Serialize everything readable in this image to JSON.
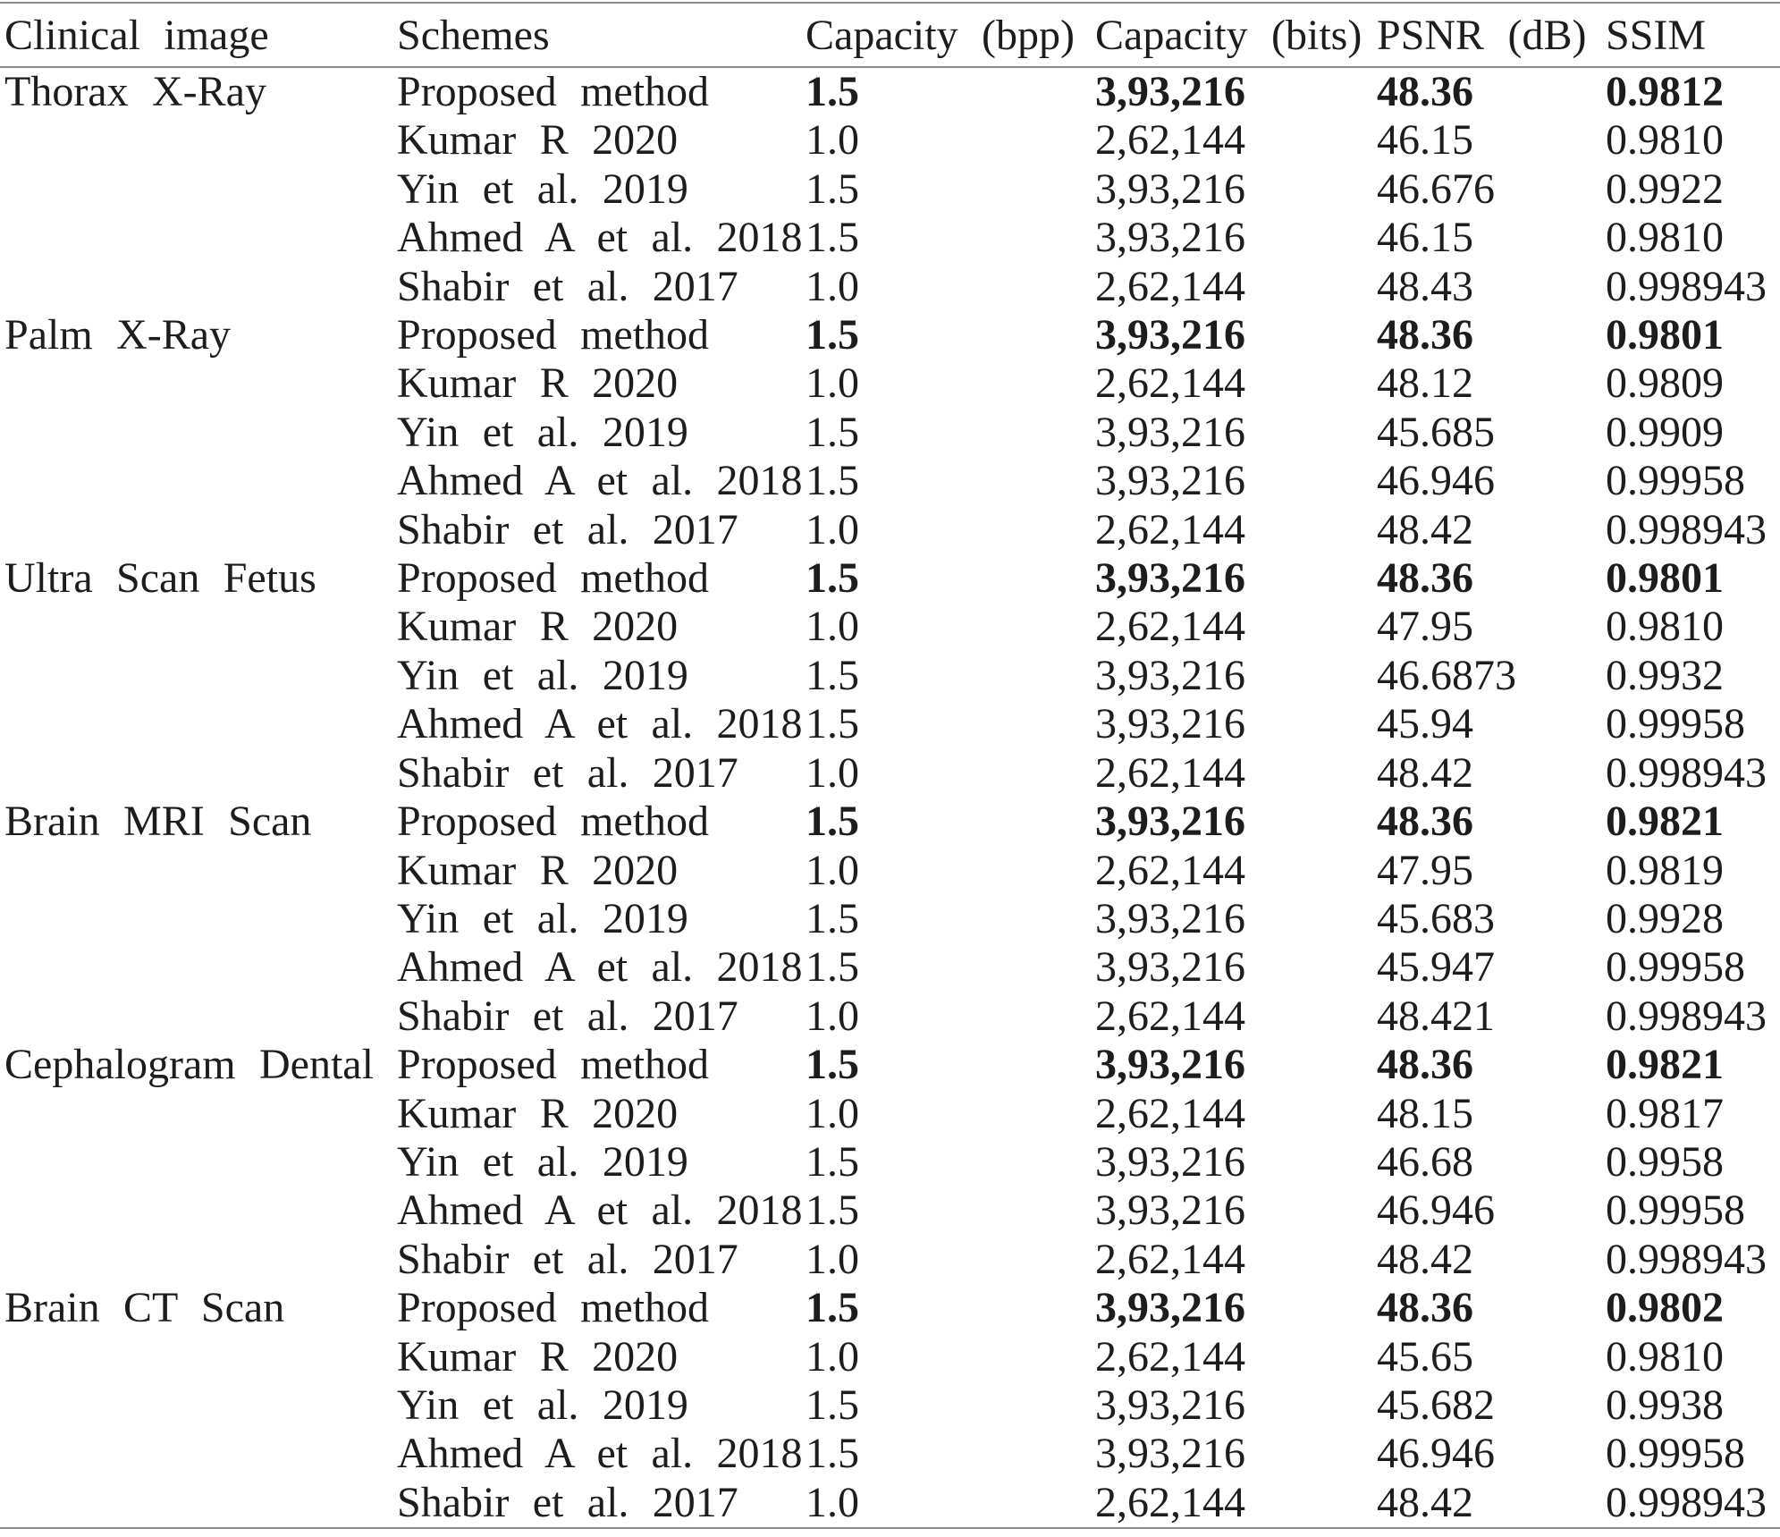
{
  "table": {
    "headers": [
      "Clinical image",
      "Schemes",
      "Capacity (bpp)",
      "Capacity (bits)",
      "PSNR (dB)",
      "SSIM"
    ],
    "groups": [
      {
        "image": "Thorax X-Ray",
        "rows": [
          {
            "scheme": "Proposed method",
            "bpp": "1.5",
            "bits": "3,93,216",
            "psnr": "48.36",
            "ssim": "0.9812",
            "highlight": true
          },
          {
            "scheme": "Kumar R 2020",
            "bpp": "1.0",
            "bits": "2,62,144",
            "psnr": "46.15",
            "ssim": "0.9810",
            "highlight": false
          },
          {
            "scheme": "Yin et al. 2019",
            "bpp": "1.5",
            "bits": "3,93,216",
            "psnr": "46.676",
            "ssim": "0.9922",
            "highlight": false
          },
          {
            "scheme": "Ahmed A et al. 2018",
            "bpp": "1.5",
            "bits": "3,93,216",
            "psnr": "46.15",
            "ssim": "0.9810",
            "highlight": false
          },
          {
            "scheme": "Shabir et al. 2017",
            "bpp": "1.0",
            "bits": "2,62,144",
            "psnr": "48.43",
            "ssim": "0.998943",
            "highlight": false
          }
        ]
      },
      {
        "image": "Palm X-Ray",
        "rows": [
          {
            "scheme": "Proposed method",
            "bpp": "1.5",
            "bits": "3,93,216",
            "psnr": "48.36",
            "ssim": "0.9801",
            "highlight": true
          },
          {
            "scheme": "Kumar R 2020",
            "bpp": "1.0",
            "bits": "2,62,144",
            "psnr": "48.12",
            "ssim": "0.9809",
            "highlight": false
          },
          {
            "scheme": "Yin et al. 2019",
            "bpp": "1.5",
            "bits": "3,93,216",
            "psnr": "45.685",
            "ssim": "0.9909",
            "highlight": false
          },
          {
            "scheme": "Ahmed A et al. 2018",
            "bpp": "1.5",
            "bits": "3,93,216",
            "psnr": "46.946",
            "ssim": "0.99958",
            "highlight": false
          },
          {
            "scheme": "Shabir et al. 2017",
            "bpp": "1.0",
            "bits": "2,62,144",
            "psnr": "48.42",
            "ssim": "0.998943",
            "highlight": false
          }
        ]
      },
      {
        "image": "Ultra Scan Fetus",
        "rows": [
          {
            "scheme": "Proposed method",
            "bpp": "1.5",
            "bits": "3,93,216",
            "psnr": "48.36",
            "ssim": "0.9801",
            "highlight": true
          },
          {
            "scheme": "Kumar R 2020",
            "bpp": "1.0",
            "bits": "2,62,144",
            "psnr": "47.95",
            "ssim": "0.9810",
            "highlight": false
          },
          {
            "scheme": "Yin et al. 2019",
            "bpp": "1.5",
            "bits": "3,93,216",
            "psnr": "46.6873",
            "ssim": "0.9932",
            "highlight": false
          },
          {
            "scheme": "Ahmed A et al. 2018",
            "bpp": "1.5",
            "bits": "3,93,216",
            "psnr": "45.94",
            "ssim": "0.99958",
            "highlight": false
          },
          {
            "scheme": "Shabir et al. 2017",
            "bpp": "1.0",
            "bits": "2,62,144",
            "psnr": "48.42",
            "ssim": "0.998943",
            "highlight": false
          }
        ]
      },
      {
        "image": "Brain MRI Scan",
        "rows": [
          {
            "scheme": "Proposed method",
            "bpp": "1.5",
            "bits": "3,93,216",
            "psnr": "48.36",
            "ssim": "0.9821",
            "highlight": true
          },
          {
            "scheme": "Kumar R 2020",
            "bpp": "1.0",
            "bits": "2,62,144",
            "psnr": "47.95",
            "ssim": "0.9819",
            "highlight": false
          },
          {
            "scheme": "Yin et al. 2019",
            "bpp": "1.5",
            "bits": "3,93,216",
            "psnr": "45.683",
            "ssim": "0.9928",
            "highlight": false
          },
          {
            "scheme": "Ahmed A et al. 2018",
            "bpp": "1.5",
            "bits": "3,93,216",
            "psnr": "45.947",
            "ssim": "0.99958",
            "highlight": false
          },
          {
            "scheme": "Shabir et al. 2017",
            "bpp": "1.0",
            "bits": "2,62,144",
            "psnr": "48.421",
            "ssim": "0.998943",
            "highlight": false
          }
        ]
      },
      {
        "image": "Cephalogram Dental",
        "rows": [
          {
            "scheme": "Proposed method",
            "bpp": "1.5",
            "bits": "3,93,216",
            "psnr": "48.36",
            "ssim": "0.9821",
            "highlight": true
          },
          {
            "scheme": "Kumar R 2020",
            "bpp": "1.0",
            "bits": "2,62,144",
            "psnr": "48.15",
            "ssim": "0.9817",
            "highlight": false
          },
          {
            "scheme": "Yin et al. 2019",
            "bpp": "1.5",
            "bits": "3,93,216",
            "psnr": "46.68",
            "ssim": "0.9958",
            "highlight": false
          },
          {
            "scheme": "Ahmed A et al. 2018",
            "bpp": "1.5",
            "bits": "3,93,216",
            "psnr": "46.946",
            "ssim": "0.99958",
            "highlight": false
          },
          {
            "scheme": "Shabir et al. 2017",
            "bpp": "1.0",
            "bits": "2,62,144",
            "psnr": "48.42",
            "ssim": "0.998943",
            "highlight": false
          }
        ]
      },
      {
        "image": "Brain CT Scan",
        "rows": [
          {
            "scheme": "Proposed method",
            "bpp": "1.5",
            "bits": "3,93,216",
            "psnr": "48.36",
            "ssim": "0.9802",
            "highlight": true
          },
          {
            "scheme": "Kumar R 2020",
            "bpp": "1.0",
            "bits": "2,62,144",
            "psnr": "45.65",
            "ssim": "0.9810",
            "highlight": false
          },
          {
            "scheme": "Yin et al. 2019",
            "bpp": "1.5",
            "bits": "3,93,216",
            "psnr": "45.682",
            "ssim": "0.9938",
            "highlight": false
          },
          {
            "scheme": "Ahmed A et al. 2018",
            "bpp": "1.5",
            "bits": "3,93,216",
            "psnr": "46.946",
            "ssim": "0.99958",
            "highlight": false
          },
          {
            "scheme": "Shabir et al. 2017",
            "bpp": "1.0",
            "bits": "2,62,144",
            "psnr": "48.42",
            "ssim": "0.998943",
            "highlight": false
          }
        ]
      }
    ]
  }
}
